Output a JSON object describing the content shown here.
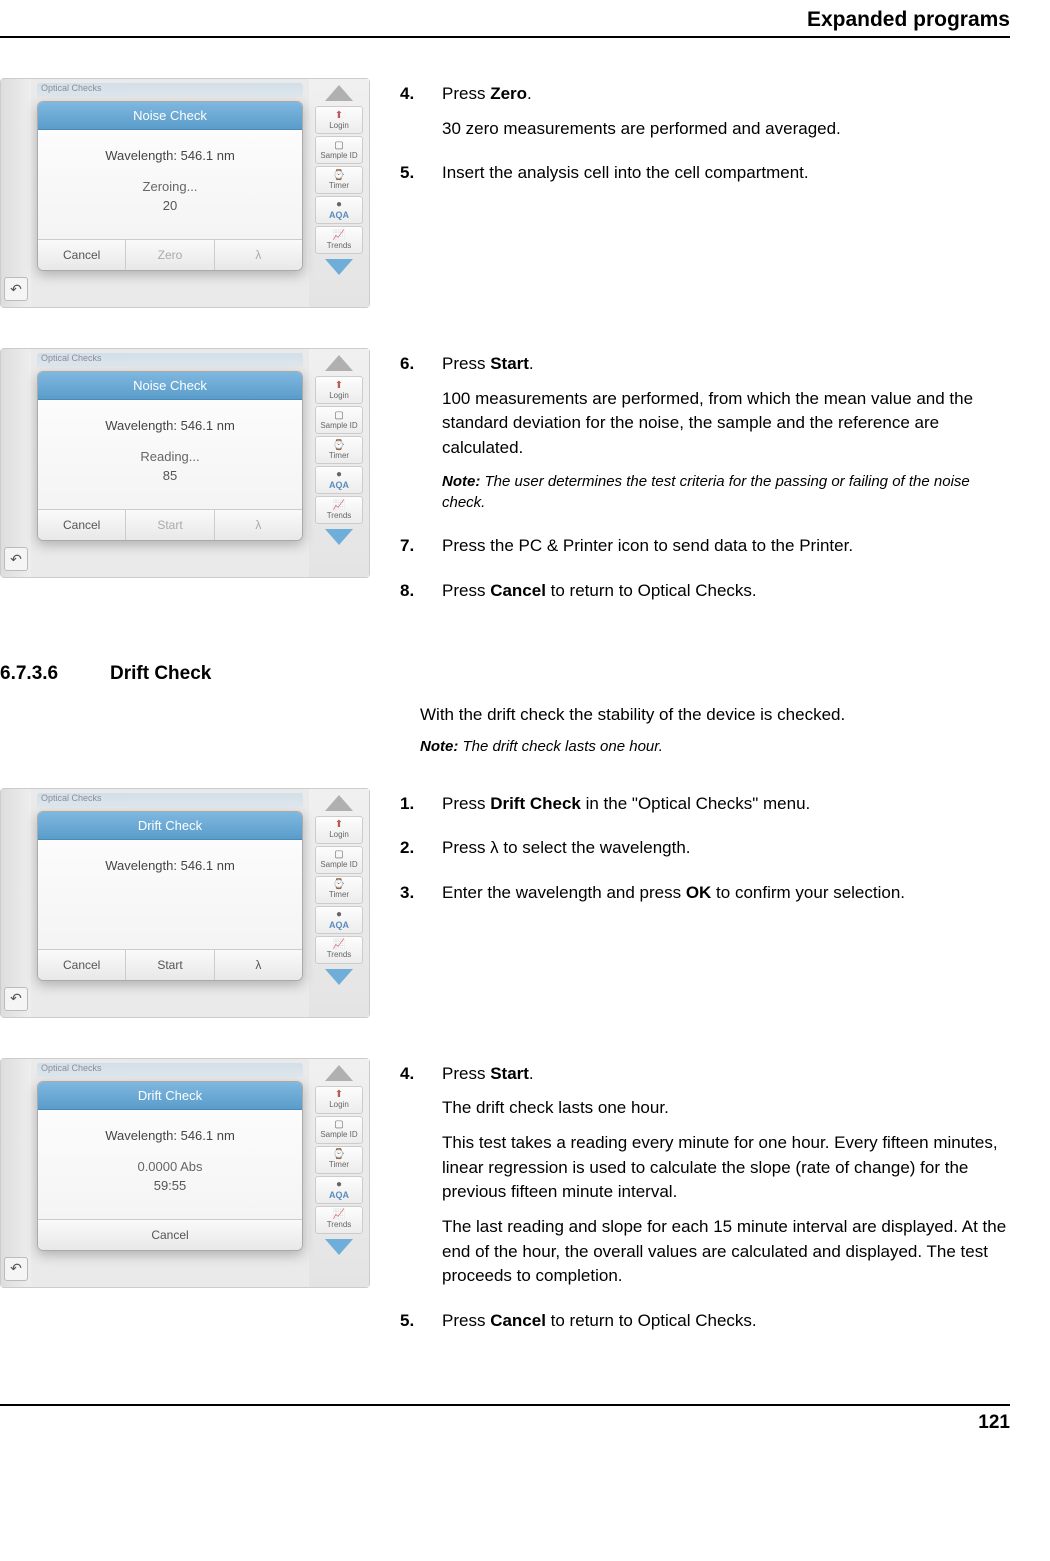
{
  "header": {
    "title": "Expanded programs"
  },
  "footer": {
    "page": "121"
  },
  "sidebar": {
    "login": "Login",
    "sample_id": "Sample ID",
    "timer": "Timer",
    "aqa": "AQA",
    "trends": "Trends"
  },
  "screenshots": {
    "tab_blur": "Optical Checks",
    "s1": {
      "dialog_title": "Noise Check",
      "wavelength": "Wavelength: 546.1 nm",
      "status": "Zeroing...",
      "value": "20",
      "btn_cancel": "Cancel",
      "btn_zero": "Zero",
      "btn_lambda": "λ"
    },
    "s2": {
      "dialog_title": "Noise Check",
      "wavelength": "Wavelength: 546.1 nm",
      "status": "Reading...",
      "value": "85",
      "btn_cancel": "Cancel",
      "btn_start": "Start",
      "btn_lambda": "λ"
    },
    "s3": {
      "dialog_title": "Drift Check",
      "wavelength": "Wavelength: 546.1 nm",
      "btn_cancel": "Cancel",
      "btn_start": "Start",
      "btn_lambda": "λ"
    },
    "s4": {
      "dialog_title": "Drift Check",
      "wavelength": "Wavelength: 546.1 nm",
      "abs": "0.0000 Abs",
      "time": "59:55",
      "btn_cancel": "Cancel"
    }
  },
  "steps": {
    "b1": {
      "n4": "4.",
      "n4_text_pre": "Press ",
      "n4_bold": "Zero",
      "n4_text_post": ".",
      "n4_sub": "30 zero measurements are performed and averaged.",
      "n5": "5.",
      "n5_text": "Insert the analysis cell into the cell compartment."
    },
    "b2": {
      "n6": "6.",
      "n6_text_pre": "Press ",
      "n6_bold": "Start",
      "n6_text_post": ".",
      "n6_sub": "100 measurements are performed, from which the mean value and the standard deviation for the noise, the sample and the reference are calculated.",
      "n6_note_label": "Note:",
      "n6_note": " The user determines the test criteria for the passing or failing of the noise check.",
      "n7": "7.",
      "n7_text": "Press the PC & Printer icon to send data to the Printer.",
      "n8": "8.",
      "n8_text_pre": "Press ",
      "n8_bold": "Cancel",
      "n8_text_post": " to return to Optical Checks."
    },
    "b3": {
      "n1": "1.",
      "n1_text_pre": "Press ",
      "n1_bold": "Drift Check",
      "n1_text_post": " in the \"Optical Checks\" menu.",
      "n2": "2.",
      "n2_text": "Press λ to select the wavelength.",
      "n3": "3.",
      "n3_text_pre": "Enter the wavelength and press ",
      "n3_bold": "OK",
      "n3_text_post": " to confirm your selection."
    },
    "b4": {
      "n4": "4.",
      "n4_text_pre": "Press ",
      "n4_bold": "Start",
      "n4_text_post": ".",
      "n4_sub1": "The drift check lasts one hour.",
      "n4_sub2": "This test takes a reading every minute for one hour. Every fifteen minutes, linear regression is used to calculate the slope (rate of change) for the previous fifteen minute interval.",
      "n4_sub3": "The last reading and slope for each 15 minute interval are displayed. At the end of the hour, the overall values are calculated and displayed. The test proceeds to completion.",
      "n5": "5.",
      "n5_text_pre": "Press ",
      "n5_bold": "Cancel",
      "n5_text_post": " to return to Optical Checks."
    }
  },
  "section": {
    "num": "6.7.3.6",
    "title": "Drift Check",
    "intro": "With the drift check the stability of the device is checked.",
    "note_label": "Note:",
    "note": " The drift check lasts one hour."
  }
}
